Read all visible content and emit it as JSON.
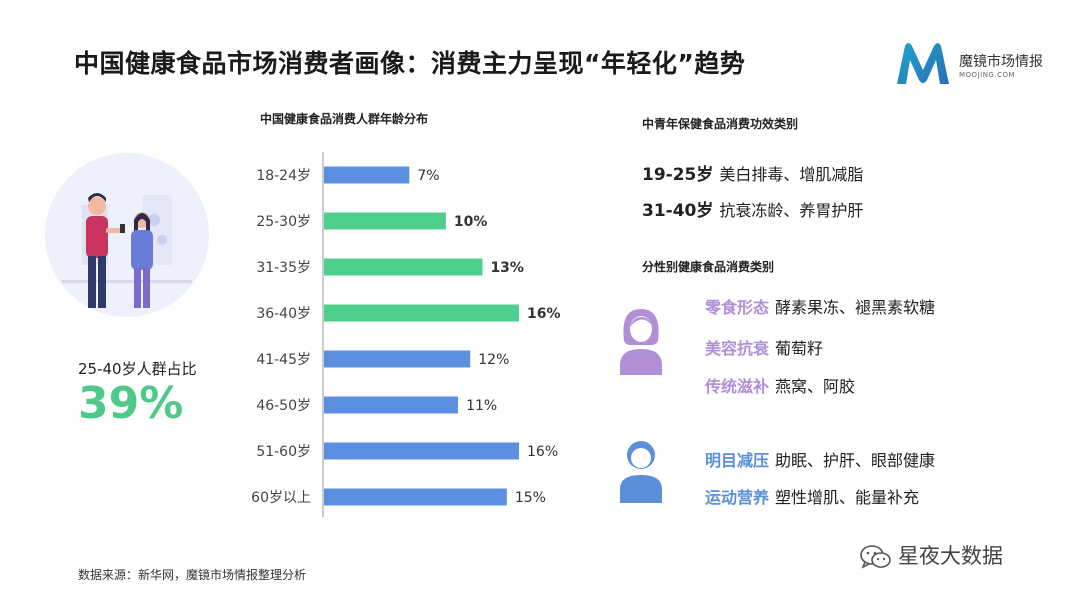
{
  "header": {
    "title": "中国健康食品市场消费者画像：消费主力呈现“年轻化”趋势",
    "brand_name": "魔镜市场情报",
    "brand_domain": "MOOJING.COM"
  },
  "left_panel": {
    "stat_label": "25-40岁人群占比",
    "stat_value": "39%"
  },
  "chart_data": {
    "type": "bar",
    "orientation": "horizontal",
    "title": "中国健康食品消费人群年龄分布",
    "categories": [
      "18-24岁",
      "25-30岁",
      "31-35岁",
      "36-40岁",
      "41-45岁",
      "46-50岁",
      "51-60岁",
      "60岁以上"
    ],
    "values": [
      7,
      10,
      13,
      16,
      12,
      11,
      16,
      15
    ],
    "labels": [
      "7%",
      "10%",
      "13%",
      "16%",
      "12%",
      "11%",
      "16%",
      "15%"
    ],
    "highlighted": [
      false,
      true,
      true,
      true,
      false,
      false,
      false,
      false
    ],
    "colors": {
      "default": "#5b8fe0",
      "highlight": "#4fcf8e"
    },
    "xlim": [
      0,
      16
    ],
    "grid": false,
    "xlabel": "",
    "ylabel": ""
  },
  "function_section": {
    "title": "中青年保健食品消费功效类别",
    "rows": [
      {
        "age": "19-25岁",
        "items": "美白排毒、增肌减脂"
      },
      {
        "age": "31-40岁",
        "items": "抗衰冻龄、养胃护肝"
      }
    ]
  },
  "gender_section": {
    "title": "分性别健康食品消费类别",
    "female": [
      {
        "category": "零食形态",
        "items": "酵素果冻、褪黑素软糖"
      },
      {
        "category": "美容抗衰",
        "items": "葡萄籽"
      },
      {
        "category": "传统滋补",
        "items": "燕窝、阿胶"
      }
    ],
    "male": [
      {
        "category": "明目减压",
        "items": "助眠、护肝、眼部健康"
      },
      {
        "category": "运动营养",
        "items": "塑性增肌、能量补充"
      }
    ],
    "colors": {
      "female": "#b18fd6",
      "male": "#5b8fd9"
    }
  },
  "footer": {
    "source": "数据来源：新华网，魔镜市场情报整理分析",
    "watermark": "星夜大数据"
  },
  "icons": {
    "brand_logo": "moojing-m-logo",
    "female_avatar": "female-avatar-icon",
    "male_avatar": "male-avatar-icon",
    "wechat": "wechat-icon"
  }
}
